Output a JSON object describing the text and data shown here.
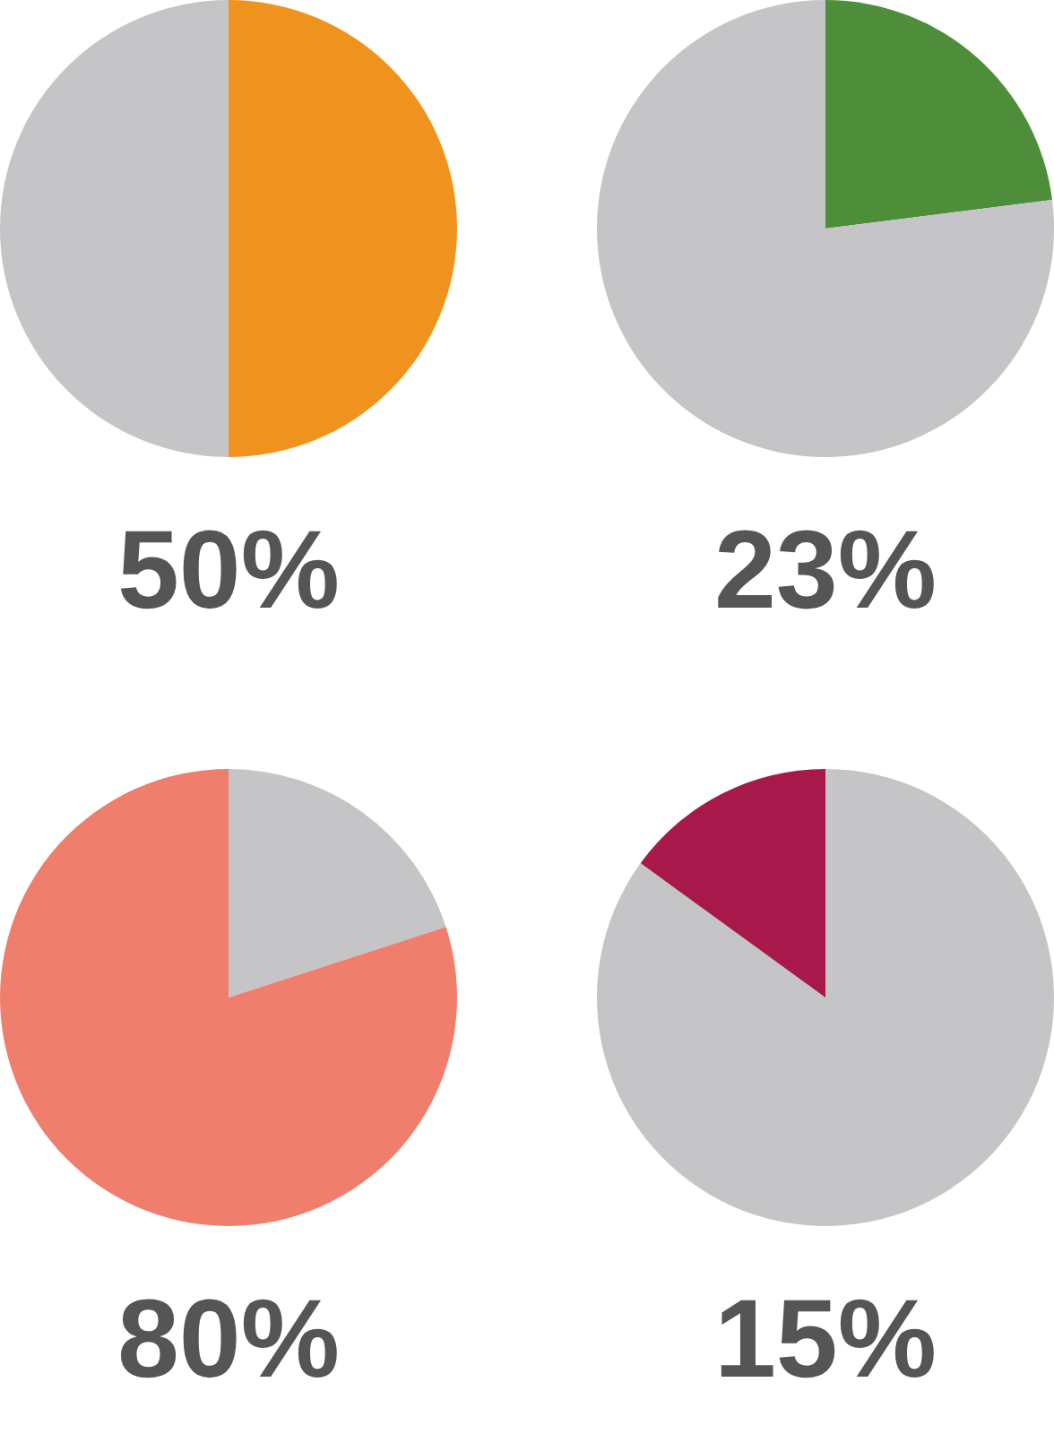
{
  "chart_data": [
    {
      "type": "pie",
      "title": "50%",
      "categories": [
        null,
        null
      ],
      "values": [
        50,
        50
      ],
      "colors": [
        "#f0931e",
        "#c5c4c7"
      ]
    },
    {
      "type": "pie",
      "title": "23%",
      "categories": [
        null,
        null
      ],
      "values": [
        23,
        77
      ],
      "colors": [
        "#4e8e3a",
        "#c5c4c7"
      ]
    },
    {
      "type": "pie",
      "title": "80%",
      "categories": [
        null,
        null
      ],
      "values": [
        20,
        80
      ],
      "colors": [
        "#c5c4c7",
        "#ef7e6c"
      ]
    },
    {
      "type": "pie",
      "title": "15%",
      "categories": [
        null,
        null
      ],
      "values": [
        85,
        15
      ],
      "colors": [
        "#c5c4c7",
        "#a9184a"
      ]
    }
  ]
}
